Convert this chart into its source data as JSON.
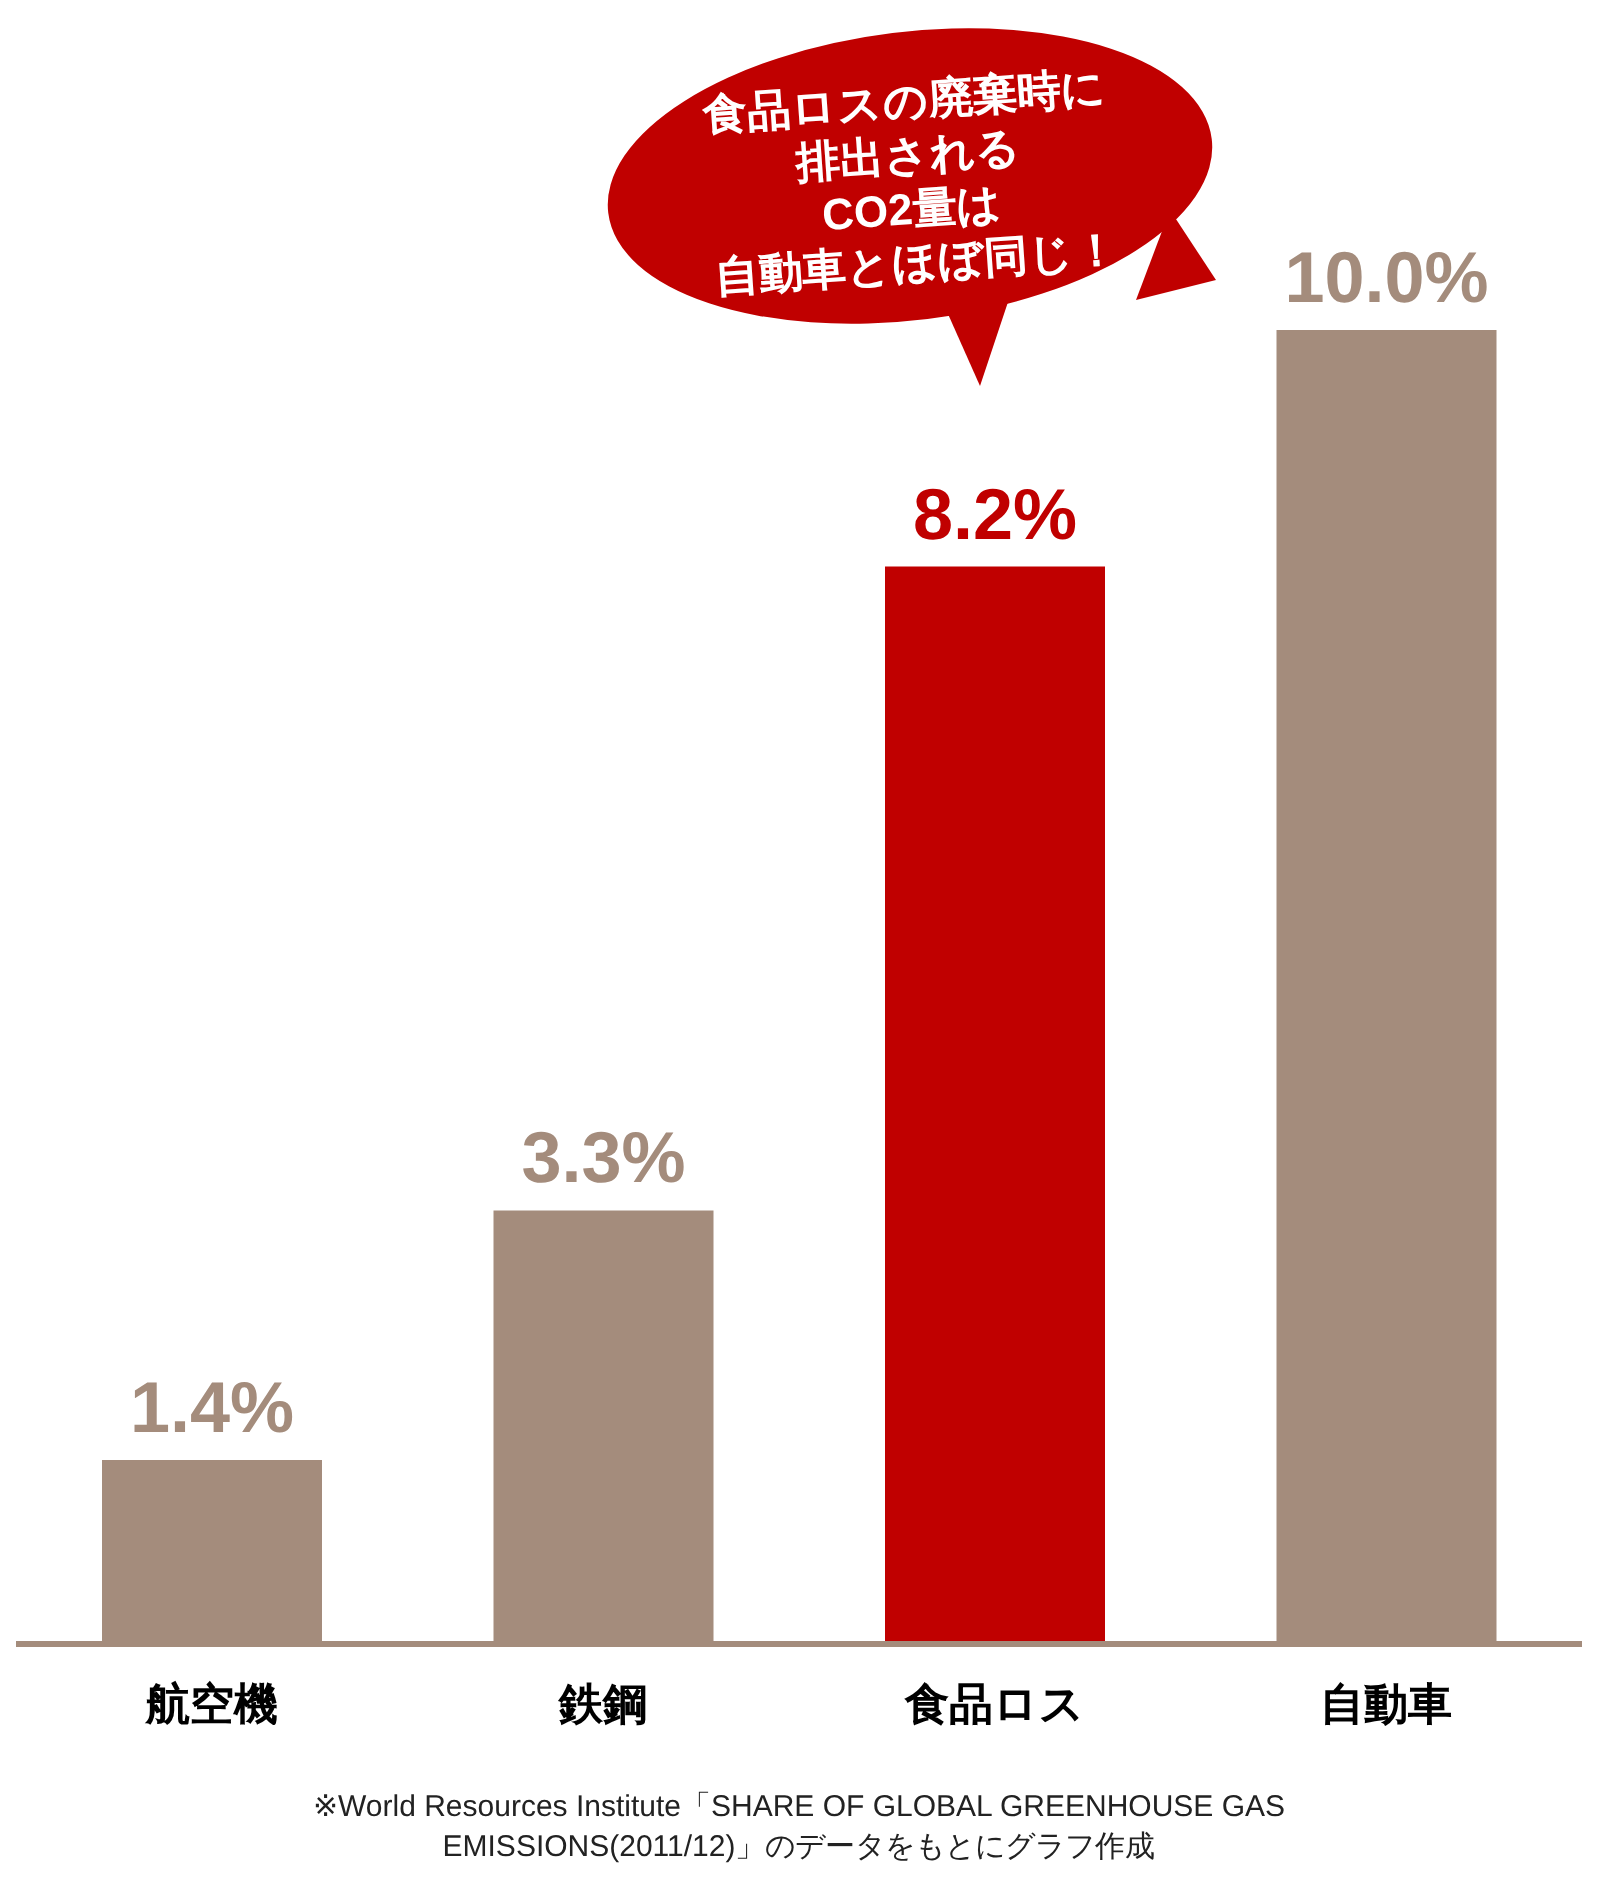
{
  "chart_data": {
    "type": "bar",
    "categories": [
      "航空機",
      "鉄鋼",
      "食品ロス",
      "自動車"
    ],
    "values": [
      1.4,
      3.3,
      8.2,
      10.0
    ],
    "colors": [
      "#a48c7c",
      "#a48c7c",
      "#c00000",
      "#a48c7c"
    ],
    "value_labels": [
      "1.4%",
      "3.3%",
      "8.2%",
      "10.0%"
    ],
    "tick_labels": "x",
    "annotations": [
      "食品ロスの廃棄時に排出されるCO2量は自動車とほぼ同じ！",
      "※World Resources Institute「SHARE OF GLOBAL GREENHOUSE GAS EMISSIONS(2011/12)」のデータをもとにグラフ作成"
    ]
  }
}
